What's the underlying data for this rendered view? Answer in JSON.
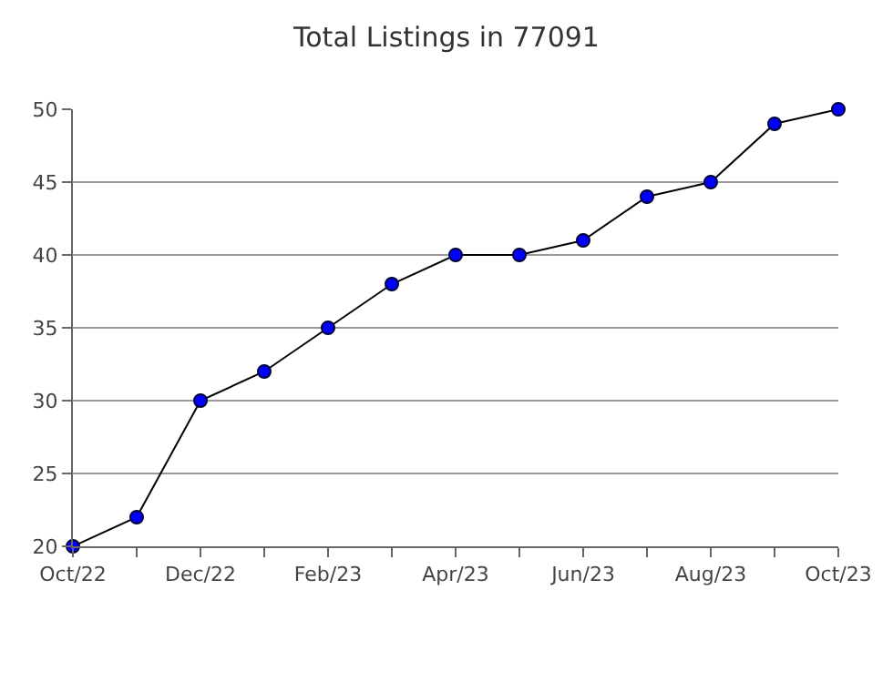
{
  "chart_data": {
    "type": "line",
    "title": "Total Listings in 77091",
    "categories": [
      "Oct/22",
      null,
      "Dec/22",
      null,
      "Feb/23",
      null,
      "Apr/23",
      null,
      "Jun/23",
      null,
      "Aug/23",
      null,
      "Oct/23"
    ],
    "series": [
      {
        "color": "#0000ff",
        "values": [
          20,
          22,
          30,
          32,
          35,
          38,
          40,
          40,
          41,
          44,
          45,
          49,
          50
        ]
      }
    ],
    "ylim": [
      20,
      50
    ],
    "yticks": [
      20,
      25,
      30,
      35,
      40,
      45,
      50
    ],
    "grid": "y",
    "marker": "circle",
    "line_style": "solid"
  }
}
